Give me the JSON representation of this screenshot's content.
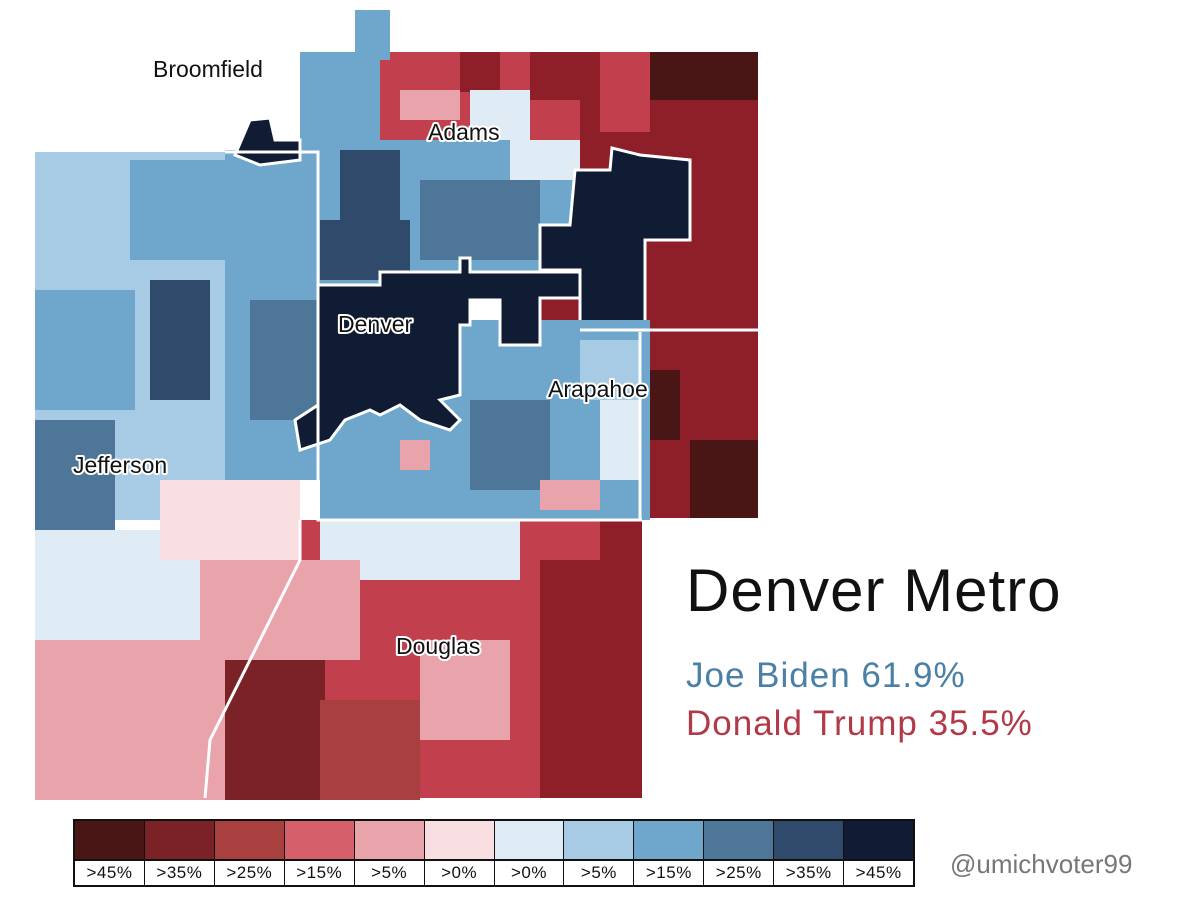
{
  "title": "Denver Metro",
  "results": [
    {
      "candidate": "Joe Biden",
      "pct": "61.9%",
      "color": "#4a7fa6"
    },
    {
      "candidate": "Donald Trump",
      "pct": "35.5%",
      "color": "#b23a48"
    }
  ],
  "counties": [
    {
      "name": "Broomfield",
      "shade": ">15%",
      "party": "dem"
    },
    {
      "name": "Adams",
      "shade": ">15%",
      "party": "dem"
    },
    {
      "name": "Denver",
      "shade": ">45%",
      "party": "dem"
    },
    {
      "name": "Arapahoe",
      "shade": ">15%",
      "party": "dem"
    },
    {
      "name": "Jefferson",
      "shade": ">5%",
      "party": "dem"
    },
    {
      "name": "Douglas",
      "shade": ">15%",
      "party": "rep"
    }
  ],
  "legend": [
    {
      "label": ">45%",
      "color": "#4a1515",
      "party": "rep"
    },
    {
      "label": ">35%",
      "color": "#7a2226",
      "party": "rep"
    },
    {
      "label": ">25%",
      "color": "#a8403f",
      "party": "rep"
    },
    {
      "label": ">15%",
      "color": "#d55f6b",
      "party": "rep"
    },
    {
      "label": ">5%",
      "color": "#e8a3ab",
      "party": "rep"
    },
    {
      "label": ">0%",
      "color": "#f8dde1",
      "party": "rep"
    },
    {
      "label": ">0%",
      "color": "#dfebf5",
      "party": "dem"
    },
    {
      "label": ">5%",
      "color": "#a7cbe5",
      "party": "dem"
    },
    {
      "label": ">15%",
      "color": "#6ea6cc",
      "party": "dem"
    },
    {
      "label": ">25%",
      "color": "#4e7699",
      "party": "dem"
    },
    {
      "label": ">35%",
      "color": "#2f4a6a",
      "party": "dem"
    },
    {
      "label": ">45%",
      "color": "#0f1c33",
      "party": "dem"
    }
  ],
  "credit": "@umichvoter99"
}
